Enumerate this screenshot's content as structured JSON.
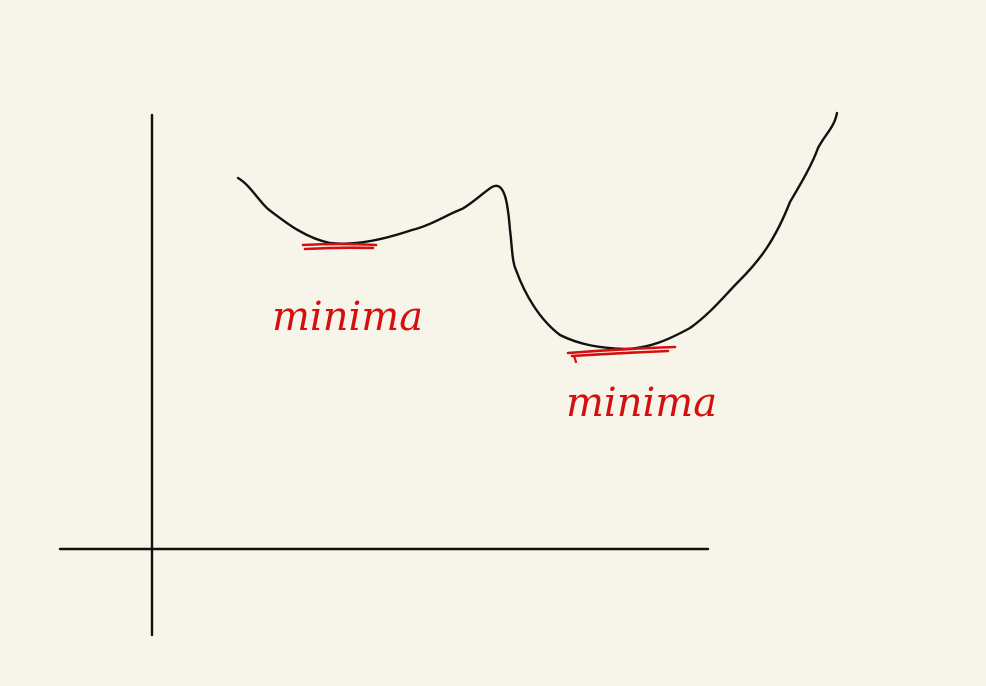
{
  "canvas": {
    "background": "#f7f5ea"
  },
  "colors": {
    "curve": "#111111",
    "axes": "#111111",
    "annotation": "#d40f0f"
  },
  "annotations": {
    "left_minimum": "minima",
    "right_minimum": "minima"
  }
}
